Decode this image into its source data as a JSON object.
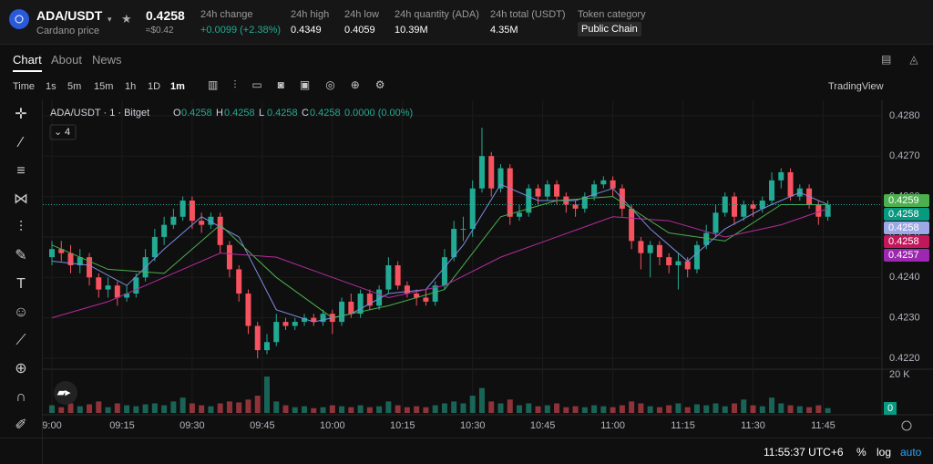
{
  "header": {
    "symbol": "ADA/USDT",
    "subtitle": "Cardano price",
    "price": "0.4258",
    "price_usd": "≈$0.42",
    "stats": [
      {
        "label": "24h change",
        "value": "+0.0099 (+2.38%)"
      },
      {
        "label": "24h high",
        "value": "0.4349"
      },
      {
        "label": "24h low",
        "value": "0.4059"
      },
      {
        "label": "24h quantity (ADA)",
        "value": "10.39M"
      },
      {
        "label": "24h total (USDT)",
        "value": "4.35M"
      }
    ],
    "category_label": "Token category",
    "category": "Public Chain"
  },
  "tabs": [
    "Chart",
    "About",
    "News"
  ],
  "intervals": [
    "Time",
    "1s",
    "5m",
    "15m",
    "1h",
    "1D",
    "1m"
  ],
  "toolbar_right": "TradingView",
  "chart_data": {
    "type": "candlestick",
    "title": "ADA/USDT · 1 · Bitget",
    "ohlc_legend": [
      {
        "label": "O",
        "value": "0.4258"
      },
      {
        "label": "H",
        "value": "0.4258"
      },
      {
        "label": "L",
        "value": "0.4258"
      },
      {
        "label": "C",
        "value": "0.4258"
      }
    ],
    "change": "0.0000 (0.00%)",
    "indicator_count": "4",
    "up_color": "#22ab94",
    "down_color": "#f7525f",
    "open": [
      0.4245,
      0.4247,
      0.4246,
      0.4243,
      0.4245,
      0.424,
      0.4237,
      0.4238,
      0.4235,
      0.4236,
      0.424,
      0.4245,
      0.425,
      0.4253,
      0.4255,
      0.4259,
      0.4254,
      0.4253,
      0.4255,
      0.4248,
      0.4242,
      0.4236,
      0.4228,
      0.4222,
      0.4224,
      0.4229,
      0.4228,
      0.4229,
      0.423,
      0.4229,
      0.4231,
      0.4229,
      0.4234,
      0.4231,
      0.4236,
      0.4233,
      0.4237,
      0.4243,
      0.4238,
      0.4236,
      0.4235,
      0.4234,
      0.4238,
      0.4245,
      0.4252,
      0.4252,
      0.4262,
      0.427,
      0.4262,
      0.4267,
      0.4255,
      0.4256,
      0.4262,
      0.426,
      0.4263,
      0.426,
      0.4258,
      0.4257,
      0.426,
      0.4263,
      0.4264,
      0.4262,
      0.4257,
      0.4249,
      0.4246,
      0.4248,
      0.4245,
      0.4243,
      0.4244,
      0.4242,
      0.4248,
      0.4251,
      0.4256,
      0.426,
      0.4255,
      0.4258,
      0.4257,
      0.4259,
      0.4264,
      0.4266,
      0.426,
      0.4262,
      0.4258,
      0.4255
    ],
    "high": [
      0.4249,
      0.4249,
      0.4248,
      0.4247,
      0.4246,
      0.4241,
      0.424,
      0.4239,
      0.4238,
      0.4241,
      0.4247,
      0.4252,
      0.4255,
      0.4257,
      0.426,
      0.426,
      0.4256,
      0.4256,
      0.4256,
      0.4249,
      0.4243,
      0.4237,
      0.4229,
      0.4226,
      0.4231,
      0.423,
      0.423,
      0.4231,
      0.4231,
      0.4232,
      0.4232,
      0.4235,
      0.4236,
      0.4237,
      0.4237,
      0.4238,
      0.4245,
      0.4244,
      0.4239,
      0.4237,
      0.4237,
      0.4239,
      0.4247,
      0.4254,
      0.4255,
      0.4264,
      0.4277,
      0.4271,
      0.4268,
      0.4268,
      0.4258,
      0.4263,
      0.4263,
      0.4264,
      0.4264,
      0.4261,
      0.4259,
      0.4261,
      0.4264,
      0.4265,
      0.4265,
      0.4263,
      0.4258,
      0.425,
      0.4249,
      0.4249,
      0.4246,
      0.4246,
      0.4245,
      0.4249,
      0.4253,
      0.4258,
      0.4261,
      0.4261,
      0.4259,
      0.4259,
      0.426,
      0.4266,
      0.4267,
      0.4267,
      0.4263,
      0.4263,
      0.4259,
      0.4259
    ],
    "low": [
      0.4243,
      0.4244,
      0.4241,
      0.4241,
      0.4238,
      0.4235,
      0.4235,
      0.4233,
      0.4234,
      0.4235,
      0.4239,
      0.4244,
      0.4248,
      0.4252,
      0.4254,
      0.4252,
      0.4251,
      0.4252,
      0.4246,
      0.424,
      0.4234,
      0.4226,
      0.422,
      0.4221,
      0.4223,
      0.4227,
      0.4227,
      0.4228,
      0.4228,
      0.4228,
      0.4226,
      0.4228,
      0.423,
      0.423,
      0.4232,
      0.4232,
      0.4236,
      0.4237,
      0.4235,
      0.4233,
      0.4233,
      0.4233,
      0.4237,
      0.4244,
      0.4249,
      0.425,
      0.4261,
      0.426,
      0.4261,
      0.4253,
      0.4254,
      0.4255,
      0.4258,
      0.4259,
      0.4258,
      0.4256,
      0.4255,
      0.4256,
      0.4259,
      0.4262,
      0.426,
      0.4255,
      0.4247,
      0.4242,
      0.424,
      0.4243,
      0.4241,
      0.4237,
      0.424,
      0.4241,
      0.4247,
      0.425,
      0.4255,
      0.4253,
      0.4254,
      0.4255,
      0.4256,
      0.4258,
      0.4262,
      0.4259,
      0.4259,
      0.4257,
      0.4253,
      0.4254
    ],
    "close": [
      0.4247,
      0.4246,
      0.4243,
      0.4245,
      0.424,
      0.4237,
      0.4238,
      0.4235,
      0.4236,
      0.424,
      0.4245,
      0.425,
      0.4253,
      0.4255,
      0.4259,
      0.4254,
      0.4253,
      0.4255,
      0.4248,
      0.4242,
      0.4236,
      0.4228,
      0.4222,
      0.4224,
      0.4229,
      0.4228,
      0.4229,
      0.423,
      0.4229,
      0.4231,
      0.4229,
      0.4234,
      0.4231,
      0.4236,
      0.4233,
      0.4237,
      0.4243,
      0.4238,
      0.4236,
      0.4235,
      0.4234,
      0.4238,
      0.4245,
      0.4252,
      0.4252,
      0.4262,
      0.427,
      0.4262,
      0.4267,
      0.4255,
      0.4256,
      0.4262,
      0.426,
      0.4263,
      0.426,
      0.4258,
      0.4257,
      0.426,
      0.4263,
      0.4264,
      0.4262,
      0.4257,
      0.4249,
      0.4246,
      0.4248,
      0.4245,
      0.4243,
      0.4244,
      0.4242,
      0.4248,
      0.4251,
      0.4256,
      0.426,
      0.4255,
      0.4258,
      0.4257,
      0.4259,
      0.4264,
      0.4266,
      0.426,
      0.4262,
      0.4258,
      0.4255,
      0.4258
    ],
    "volume": [
      4000,
      3000,
      5000,
      3500,
      4500,
      6000,
      3000,
      5000,
      4000,
      3500,
      4500,
      5000,
      4000,
      6000,
      8000,
      5000,
      4000,
      3500,
      5000,
      6000,
      5500,
      7000,
      9000,
      19000,
      6000,
      4000,
      3000,
      3500,
      2500,
      3000,
      4000,
      3500,
      3000,
      4000,
      3000,
      3500,
      6000,
      4000,
      3000,
      3500,
      3000,
      4000,
      5000,
      6000,
      5000,
      9000,
      13000,
      6000,
      5000,
      7000,
      4000,
      5000,
      3500,
      4000,
      5000,
      3000,
      3500,
      3000,
      4000,
      3500,
      3000,
      4000,
      6000,
      5000,
      3500,
      3000,
      4000,
      5000,
      3000,
      4500,
      4000,
      5000,
      3500,
      5000,
      7000,
      4000,
      3500,
      8000,
      5000,
      4000,
      3500,
      3000,
      4000,
      2500
    ],
    "lines": [
      {
        "color": "#7e8ce0",
        "x": [
          0,
          4,
          8,
          12,
          16,
          20,
          24,
          28,
          32,
          36,
          40,
          44,
          48,
          52,
          56,
          60,
          64,
          68,
          72,
          76,
          80,
          83
        ],
        "values": [
          0.4244,
          0.4243,
          0.4238,
          0.4247,
          0.4255,
          0.425,
          0.4232,
          0.4229,
          0.4231,
          0.4236,
          0.4237,
          0.4248,
          0.4263,
          0.4259,
          0.4259,
          0.4262,
          0.4252,
          0.4244,
          0.4252,
          0.4257,
          0.4261,
          0.4258
        ]
      },
      {
        "color": "#4caf50",
        "x": [
          0,
          6,
          12,
          18,
          24,
          30,
          36,
          42,
          48,
          54,
          60,
          66,
          72,
          78,
          83
        ],
        "values": [
          0.4248,
          0.4242,
          0.4241,
          0.4253,
          0.424,
          0.423,
          0.4233,
          0.4237,
          0.4255,
          0.4259,
          0.426,
          0.4251,
          0.4249,
          0.4258,
          0.4258
        ]
      },
      {
        "color": "#b62b9e",
        "x": [
          0,
          6,
          12,
          18,
          24,
          30,
          36,
          42,
          48,
          54,
          60,
          66,
          72,
          78,
          83
        ],
        "values": [
          0.423,
          0.4234,
          0.424,
          0.4246,
          0.4245,
          0.424,
          0.4235,
          0.4238,
          0.4245,
          0.425,
          0.4255,
          0.4254,
          0.425,
          0.4253,
          0.4257
        ]
      }
    ],
    "ylim": [
      0.42173,
      0.42838
    ],
    "yticks": [
      {
        "value": 0.422,
        "label": "0.4220"
      },
      {
        "value": 0.423,
        "label": "0.4230"
      },
      {
        "value": 0.424,
        "label": "0.4240"
      },
      {
        "value": 0.425,
        "label": "0.4250"
      },
      {
        "value": 0.426,
        "label": "0.4260"
      },
      {
        "value": 0.427,
        "label": "0.4270"
      },
      {
        "value": 0.428,
        "label": "0.4280"
      }
    ],
    "xlim": [
      -0.975,
      88.79
    ],
    "xticks": [
      {
        "value": 0,
        "label": "9:00"
      },
      {
        "value": 7.5,
        "label": "09:15"
      },
      {
        "value": 15,
        "label": "09:30"
      },
      {
        "value": 22.5,
        "label": "09:45"
      },
      {
        "value": 30,
        "label": "10:00"
      },
      {
        "value": 37.5,
        "label": "10:15"
      },
      {
        "value": 45,
        "label": "10:30"
      },
      {
        "value": 52.5,
        "label": "10:45"
      },
      {
        "value": 60,
        "label": "11:00"
      },
      {
        "value": 67.5,
        "label": "11:15"
      },
      {
        "value": 75,
        "label": "11:30"
      },
      {
        "value": 82.5,
        "label": "11:45"
      }
    ],
    "volume_ylim": [
      -952,
      22857
    ],
    "volume_yticks": [
      {
        "value": 20000,
        "label": "20 K"
      }
    ],
    "volume_tag": 0,
    "last_price": 0.4258,
    "price_tags": [
      {
        "value": 0.4259,
        "color": "#4caf50"
      },
      {
        "value": 0.4258,
        "color": "#089981"
      },
      {
        "value": 0.4258,
        "color": "#9fa8e6"
      },
      {
        "value": 0.4258,
        "color": "#c2185b"
      },
      {
        "value": 0.4257,
        "color": "#9c27b0"
      }
    ]
  },
  "status": {
    "time": "11:55:37 UTC+6",
    "percent": "%",
    "log": "log",
    "auto": "auto"
  }
}
